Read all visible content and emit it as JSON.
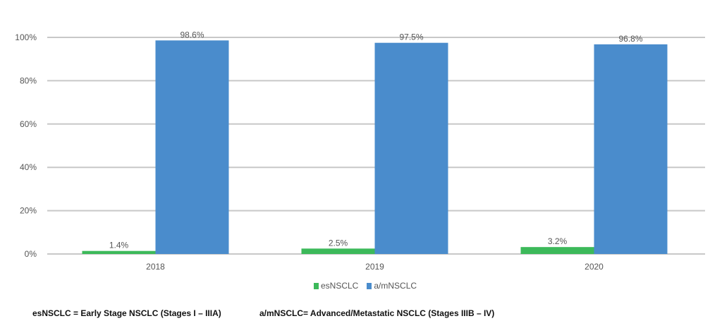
{
  "chart_data": {
    "type": "bar",
    "categories": [
      "2018",
      "2019",
      "2020"
    ],
    "series": [
      {
        "name": "esNSCLC",
        "values": [
          1.4,
          2.5,
          3.2
        ],
        "color": "#3cb95a",
        "labels": [
          "1.4%",
          "2.5%",
          "3.2%"
        ]
      },
      {
        "name": "a/mNSCLC",
        "values": [
          98.6,
          97.5,
          96.8
        ],
        "color": "#4a8ccc",
        "labels": [
          "98.6%",
          "97.5%",
          "96.8%"
        ]
      }
    ],
    "ylim": [
      0,
      100
    ],
    "yticks": [
      "0%",
      "20%",
      "40%",
      "60%",
      "80%",
      "100%"
    ],
    "grid": true,
    "legend": "bottom-center",
    "title": "",
    "xlabel": "",
    "ylabel": ""
  },
  "footnote": {
    "es": "esNSCLC = Early Stage NSCLC (Stages I – IIIA)",
    "am": "a/mNSCLC= Advanced/Metastatic NSCLC (Stages IIIB – IV)"
  }
}
